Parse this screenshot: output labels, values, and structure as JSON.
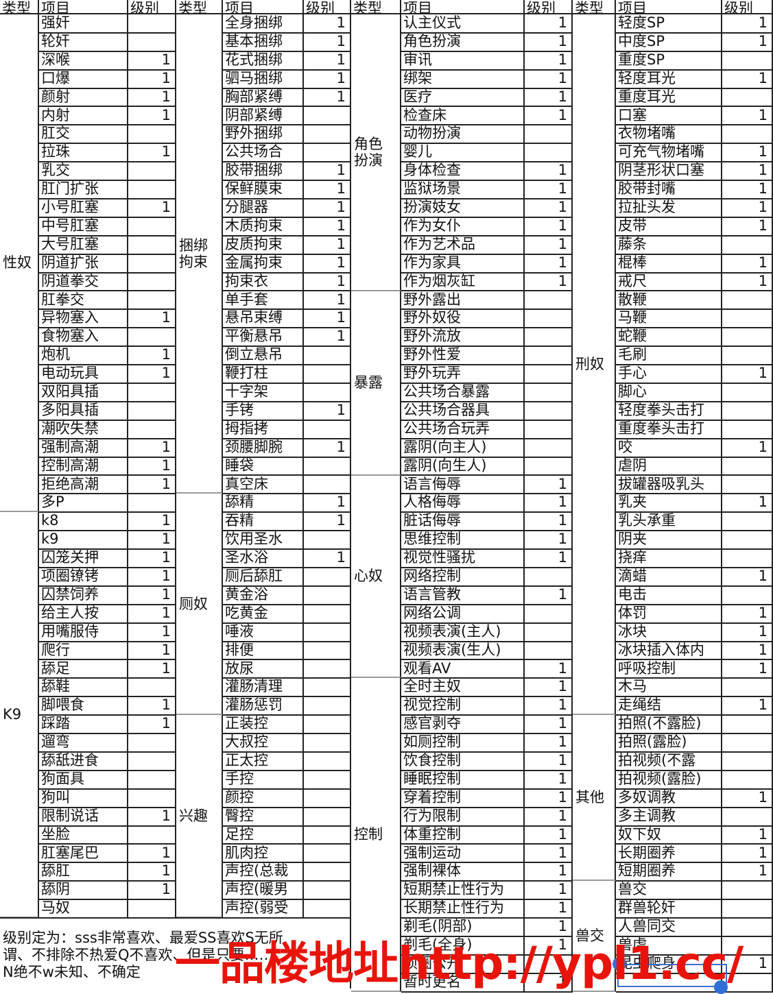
{
  "groups": [
    {
      "headers": [
        "类型",
        "项目",
        "级别"
      ],
      "types": [
        {
          "label": "性奴",
          "items": [
            [
              "强奸",
              ""
            ],
            [
              "轮奸",
              ""
            ],
            [
              "深喉",
              "1"
            ],
            [
              "口爆",
              "1"
            ],
            [
              "颜射",
              "1"
            ],
            [
              "内射",
              "1"
            ],
            [
              "肛交",
              ""
            ],
            [
              "拉珠",
              "1"
            ],
            [
              "乳交",
              ""
            ],
            [
              "肛门扩张",
              ""
            ],
            [
              "小号肛塞",
              "1"
            ],
            [
              "中号肛塞",
              ""
            ],
            [
              "大号肛塞",
              ""
            ],
            [
              "阴道扩张",
              ""
            ],
            [
              "阴道拳交",
              ""
            ],
            [
              "肛拳交",
              ""
            ],
            [
              "异物塞入",
              "1"
            ],
            [
              "食物塞入",
              ""
            ],
            [
              "炮机",
              "1"
            ],
            [
              "电动玩具",
              "1"
            ],
            [
              "双阳具插",
              ""
            ],
            [
              "多阳具插",
              ""
            ],
            [
              "潮吹失禁",
              ""
            ],
            [
              "强制高潮",
              "1"
            ],
            [
              "控制高潮",
              "1"
            ],
            [
              "拒绝高潮",
              "1"
            ],
            [
              "多P",
              ""
            ]
          ]
        },
        {
          "label": "K9",
          "items": [
            [
              "k8",
              "1"
            ],
            [
              "k9",
              "1"
            ],
            [
              "囚笼关押",
              "1"
            ],
            [
              "项圈镣铐",
              "1"
            ],
            [
              "囚禁饲养",
              "1"
            ],
            [
              "给主人按",
              "1"
            ],
            [
              "用嘴服侍",
              "1"
            ],
            [
              "爬行",
              "1"
            ],
            [
              "舔足",
              "1"
            ],
            [
              "舔鞋",
              ""
            ],
            [
              "脚喂食",
              "1"
            ],
            [
              "踩踏",
              "1"
            ],
            [
              "遛弯",
              ""
            ],
            [
              "舔舐进食",
              ""
            ],
            [
              "狗面具",
              ""
            ],
            [
              "狗叫",
              ""
            ],
            [
              "限制说话",
              "1"
            ],
            [
              "坐脸",
              ""
            ],
            [
              "肛塞尾巴",
              "1"
            ],
            [
              "舔肛",
              "1"
            ],
            [
              "舔阴",
              "1"
            ],
            [
              "马奴",
              ""
            ]
          ]
        }
      ]
    },
    {
      "headers": [
        "类型",
        "项目",
        "级别"
      ],
      "types": [
        {
          "label": "捆绑拘束",
          "items": [
            [
              "全身捆绑",
              "1"
            ],
            [
              "基本捆绑",
              "1"
            ],
            [
              "花式捆绑",
              "1"
            ],
            [
              "驷马捆绑",
              "1"
            ],
            [
              "胸部紧缚",
              "1"
            ],
            [
              "阴部紧缚",
              ""
            ],
            [
              "野外捆绑",
              ""
            ],
            [
              "公共场合",
              ""
            ],
            [
              "胶带捆绑",
              "1"
            ],
            [
              "保鲜膜束",
              "1"
            ],
            [
              "分腿器",
              "1"
            ],
            [
              "木质拘束",
              "1"
            ],
            [
              "皮质拘束",
              "1"
            ],
            [
              "金属拘束",
              "1"
            ],
            [
              "拘束衣",
              "1"
            ],
            [
              "单手套",
              "1"
            ],
            [
              "悬吊束缚",
              "1"
            ],
            [
              "平衡悬吊",
              "1"
            ],
            [
              "倒立悬吊",
              ""
            ],
            [
              "鞭打柱",
              ""
            ],
            [
              "十字架",
              ""
            ],
            [
              "手铐",
              "1"
            ],
            [
              "拇指拷",
              ""
            ],
            [
              "颈腰脚腕",
              "1"
            ],
            [
              "睡袋",
              ""
            ],
            [
              "真空床",
              ""
            ]
          ]
        },
        {
          "label": "厕奴",
          "items": [
            [
              "舔精",
              "1"
            ],
            [
              "吞精",
              "1"
            ],
            [
              "饮用圣水",
              ""
            ],
            [
              "圣水浴",
              "1"
            ],
            [
              "厕后舔肛",
              ""
            ],
            [
              "黄金浴",
              ""
            ],
            [
              "吃黄金",
              ""
            ],
            [
              "唾液",
              ""
            ],
            [
              "排便",
              ""
            ],
            [
              "放尿",
              ""
            ],
            [
              "灌肠清理",
              ""
            ],
            [
              "灌肠惩罚",
              ""
            ]
          ]
        },
        {
          "label": "兴趣",
          "items": [
            [
              "正装控",
              ""
            ],
            [
              "大叔控",
              ""
            ],
            [
              "正太控",
              ""
            ],
            [
              "手控",
              ""
            ],
            [
              "颜控",
              ""
            ],
            [
              "臀控",
              ""
            ],
            [
              "足控",
              ""
            ],
            [
              "肌肉控",
              ""
            ],
            [
              "声控(总裁",
              ""
            ],
            [
              "声控(暖男",
              ""
            ],
            [
              "声控(弱受",
              ""
            ]
          ]
        }
      ]
    },
    {
      "headers": [
        "类型",
        "项目",
        "级别"
      ],
      "types": [
        {
          "label": "角色扮演",
          "items": [
            [
              "认主仪式",
              "1"
            ],
            [
              "角色扮演",
              "1"
            ],
            [
              "审讯",
              "1"
            ],
            [
              "绑架",
              "1"
            ],
            [
              "医疗",
              "1"
            ],
            [
              "检查床",
              "1"
            ],
            [
              "动物扮演",
              ""
            ],
            [
              "婴儿",
              ""
            ],
            [
              "身体检查",
              "1"
            ],
            [
              "监狱场景",
              "1"
            ],
            [
              "扮演妓女",
              "1"
            ],
            [
              "作为女仆",
              "1"
            ],
            [
              "作为艺术品",
              "1"
            ],
            [
              "作为家具",
              "1"
            ],
            [
              "作为烟灰缸",
              "1"
            ]
          ]
        },
        {
          "label": "暴露",
          "items": [
            [
              "野外露出",
              ""
            ],
            [
              "野外奴役",
              ""
            ],
            [
              "野外流放",
              ""
            ],
            [
              "野外性爱",
              ""
            ],
            [
              "野外玩弄",
              ""
            ],
            [
              "公共场合暴露",
              ""
            ],
            [
              "公共场合器具",
              ""
            ],
            [
              "公共场合玩弄",
              ""
            ],
            [
              "露阴(向主人)",
              ""
            ],
            [
              "露阴(向生人)",
              ""
            ]
          ]
        },
        {
          "label": "心奴",
          "items": [
            [
              "语言侮辱",
              "1"
            ],
            [
              "人格侮辱",
              "1"
            ],
            [
              "脏话侮辱",
              "1"
            ],
            [
              "思维控制",
              "1"
            ],
            [
              "视觉性骚扰",
              "1"
            ],
            [
              "网络控制",
              ""
            ],
            [
              "语言管教",
              "1"
            ],
            [
              "网络公调",
              ""
            ],
            [
              "视频表演(主人)",
              ""
            ],
            [
              "视频表演(生人)",
              ""
            ],
            [
              "观看AV",
              "1"
            ]
          ]
        },
        {
          "label": "控制",
          "items": [
            [
              "全时主奴",
              "1"
            ],
            [
              "视觉控制",
              "1"
            ],
            [
              "感官剥夺",
              "1"
            ],
            [
              "如厕控制",
              "1"
            ],
            [
              "饮食控制",
              "1"
            ],
            [
              "睡眠控制",
              "1"
            ],
            [
              "穿着控制",
              "1"
            ],
            [
              "行为限制",
              "1"
            ],
            [
              "体重控制",
              "1"
            ],
            [
              "强制运动",
              "1"
            ],
            [
              "强制裸体",
              "1"
            ],
            [
              "短期禁止性行为",
              "1"
            ],
            [
              "长期禁止性行为",
              "1"
            ],
            [
              "剃毛(阴部)",
              "1"
            ],
            [
              "剃毛(全身)",
              "1"
            ],
            [
              "项圈公开",
              ""
            ],
            [
              "暂时更名",
              "1"
            ]
          ]
        }
      ]
    },
    {
      "headers": [
        "类型",
        "项目",
        "级别"
      ],
      "types": [
        {
          "label": "刑奴",
          "items": [
            [
              "轻度SP",
              "1"
            ],
            [
              "中度SP",
              "1"
            ],
            [
              "重度SP",
              ""
            ],
            [
              "轻度耳光",
              "1"
            ],
            [
              "重度耳光",
              ""
            ],
            [
              "口塞",
              "1"
            ],
            [
              "衣物堵嘴",
              ""
            ],
            [
              "可充气物堵嘴",
              "1"
            ],
            [
              "阴茎形状口塞",
              "1"
            ],
            [
              "胶带封嘴",
              "1"
            ],
            [
              "拉扯头发",
              "1"
            ],
            [
              "皮带",
              "1"
            ],
            [
              "藤条",
              ""
            ],
            [
              "棍棒",
              "1"
            ],
            [
              "戒尺",
              "1"
            ],
            [
              "散鞭",
              ""
            ],
            [
              "马鞭",
              ""
            ],
            [
              "蛇鞭",
              ""
            ],
            [
              "毛刷",
              ""
            ],
            [
              "手心",
              "1"
            ],
            [
              "脚心",
              ""
            ],
            [
              "轻度拳头击打",
              ""
            ],
            [
              "重度拳头击打",
              ""
            ],
            [
              "咬",
              "1"
            ],
            [
              "虐阴",
              ""
            ],
            [
              "拔罐器吸乳头",
              ""
            ],
            [
              "乳夹",
              "1"
            ],
            [
              "乳头承重",
              ""
            ],
            [
              "阴夹",
              ""
            ],
            [
              "挠痒",
              ""
            ],
            [
              "滴蜡",
              "1"
            ],
            [
              "电击",
              ""
            ],
            [
              "体罚",
              "1"
            ],
            [
              "冰块",
              "1"
            ],
            [
              "冰块插入体内",
              "1"
            ],
            [
              "呼吸控制",
              "1"
            ],
            [
              "木马",
              ""
            ],
            [
              "走绳结",
              "1"
            ]
          ]
        },
        {
          "label": "其他",
          "items": [
            [
              "拍照(不露脸)",
              ""
            ],
            [
              "拍照(露脸)",
              ""
            ],
            [
              "拍视频(不露",
              ""
            ],
            [
              "拍视频(露脸)",
              ""
            ],
            [
              "多奴调教",
              "1"
            ],
            [
              "多主调教",
              ""
            ],
            [
              "奴下奴",
              "1"
            ],
            [
              "长期圈养",
              "1"
            ],
            [
              "短期圈养",
              "1"
            ]
          ]
        },
        {
          "label": "兽交",
          "items": [
            [
              "兽交",
              ""
            ],
            [
              "群兽轮奸",
              ""
            ],
            [
              "人兽同交",
              ""
            ],
            [
              "兽虐",
              ""
            ],
            [
              "昆虫爬身",
              "1"
            ],
            [
              "",
              ""
            ]
          ]
        }
      ]
    }
  ],
  "note": {
    "lines": [
      "级别定为：sss非常喜欢、最爱SS喜欢S无所",
      "谓、不排除不热爱Q不喜欢、但是只要……",
      "N绝不w未知、不确定"
    ]
  },
  "watermark": "一品楼地址http://ypl1.cc/",
  "colors": {
    "watermark": "#e8140c",
    "selection": "#2f6fd8"
  }
}
